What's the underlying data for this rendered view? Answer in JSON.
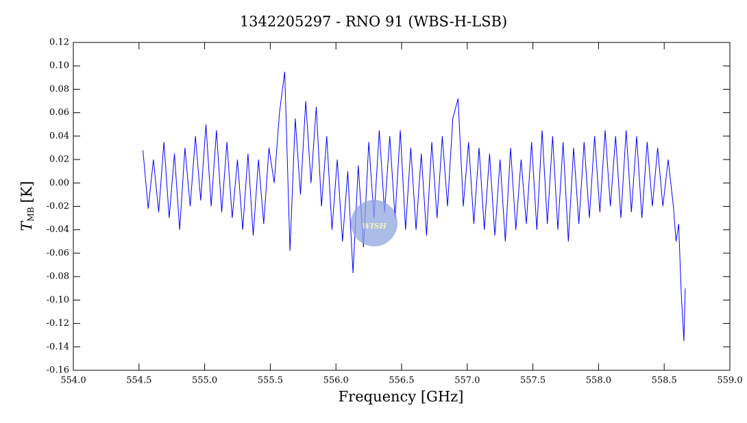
{
  "chart_data": {
    "type": "line",
    "title": "1342205297 - RNO 91 (WBS-H-LSB)",
    "x_label": "Frequency [GHz]",
    "y_label_symbol": "T",
    "y_label_subscript": "MB",
    "y_label_unit": "[K]",
    "logo": "WISH",
    "color": "#0000ff",
    "xlim": [
      554,
      559
    ],
    "ylim": [
      -0.16,
      0.12
    ],
    "xticks": [
      {
        "value": 554,
        "label": "554.0"
      },
      {
        "value": 554.5,
        "label": "554.5"
      },
      {
        "value": 555,
        "label": "555.0"
      },
      {
        "value": 555.5,
        "label": "555.5"
      },
      {
        "value": 556,
        "label": "556.0"
      },
      {
        "value": 556.5,
        "label": "556.5"
      },
      {
        "value": 557,
        "label": "557.0"
      },
      {
        "value": 557.5,
        "label": "557.5"
      },
      {
        "value": 558,
        "label": "558.0"
      },
      {
        "value": 558.5,
        "label": "558.5"
      },
      {
        "value": 559,
        "label": "559.0"
      }
    ],
    "yticks": [
      {
        "value": 0.12,
        "label": "0.12"
      },
      {
        "value": 0.1,
        "label": "0.10"
      },
      {
        "value": 0.08,
        "label": "0.08"
      },
      {
        "value": 0.06,
        "label": "0.06"
      },
      {
        "value": 0.04,
        "label": "0.04"
      },
      {
        "value": 0.02,
        "label": "0.02"
      },
      {
        "value": 0,
        "label": "0.00"
      },
      {
        "value": -0.02,
        "label": "-0.02"
      },
      {
        "value": -0.04,
        "label": "-0.04"
      },
      {
        "value": -0.06,
        "label": "-0.06"
      },
      {
        "value": -0.08,
        "label": "-0.08"
      },
      {
        "value": -0.1,
        "label": "-0.10"
      },
      {
        "value": -0.12,
        "label": "-0.12"
      },
      {
        "value": -0.14,
        "label": "-0.14"
      },
      {
        "value": -0.16,
        "label": "-0.16"
      }
    ],
    "x": [
      554.53,
      554.57,
      554.61,
      554.65,
      554.69,
      554.73,
      554.77,
      554.81,
      554.85,
      554.89,
      554.93,
      554.97,
      555.01,
      555.05,
      555.09,
      555.13,
      555.17,
      555.21,
      555.25,
      555.29,
      555.33,
      555.37,
      555.41,
      555.45,
      555.49,
      555.53,
      555.57,
      555.61,
      555.65,
      555.69,
      555.73,
      555.77,
      555.81,
      555.85,
      555.89,
      555.93,
      555.97,
      556.01,
      556.05,
      556.09,
      556.13,
      556.17,
      556.21,
      556.25,
      556.29,
      556.33,
      556.37,
      556.41,
      556.45,
      556.49,
      556.53,
      556.57,
      556.61,
      556.65,
      556.69,
      556.73,
      556.77,
      556.81,
      556.85,
      556.89,
      556.93,
      556.97,
      557.01,
      557.05,
      557.09,
      557.13,
      557.17,
      557.21,
      557.25,
      557.29,
      557.33,
      557.37,
      557.41,
      557.45,
      557.49,
      557.53,
      557.57,
      557.61,
      557.65,
      557.69,
      557.73,
      557.77,
      557.81,
      557.85,
      557.89,
      557.93,
      557.97,
      558.01,
      558.05,
      558.09,
      558.13,
      558.17,
      558.21,
      558.25,
      558.29,
      558.33,
      558.37,
      558.41,
      558.45,
      558.49,
      558.53,
      558.57,
      558.59,
      558.61,
      558.63,
      558.65,
      558.66
    ],
    "values": [
      0.028,
      -0.022,
      0.02,
      -0.025,
      0.035,
      -0.03,
      0.025,
      -0.04,
      0.03,
      -0.02,
      0.04,
      -0.015,
      0.05,
      -0.02,
      0.045,
      -0.025,
      0.035,
      -0.03,
      0.02,
      -0.04,
      0.025,
      -0.045,
      0.02,
      -0.035,
      0.03,
      0.0,
      0.06,
      0.095,
      -0.058,
      0.055,
      -0.01,
      0.07,
      0.0,
      0.065,
      -0.02,
      0.04,
      -0.04,
      0.02,
      -0.05,
      0.01,
      -0.077,
      0.015,
      -0.055,
      0.035,
      -0.03,
      0.045,
      -0.025,
      0.04,
      -0.03,
      0.045,
      -0.04,
      0.03,
      -0.04,
      0.025,
      -0.045,
      0.035,
      -0.03,
      0.04,
      -0.02,
      0.055,
      0.072,
      -0.02,
      0.035,
      -0.035,
      0.03,
      -0.04,
      0.025,
      -0.045,
      0.02,
      -0.05,
      0.03,
      -0.04,
      0.02,
      -0.035,
      0.035,
      -0.04,
      0.045,
      -0.035,
      0.04,
      -0.04,
      0.035,
      -0.05,
      0.03,
      -0.035,
      0.035,
      -0.03,
      0.04,
      -0.025,
      0.045,
      -0.02,
      0.04,
      -0.03,
      0.045,
      -0.025,
      0.04,
      -0.03,
      0.035,
      -0.02,
      0.03,
      -0.02,
      0.02,
      -0.02,
      -0.05,
      -0.035,
      -0.095,
      -0.135,
      -0.09
    ]
  }
}
